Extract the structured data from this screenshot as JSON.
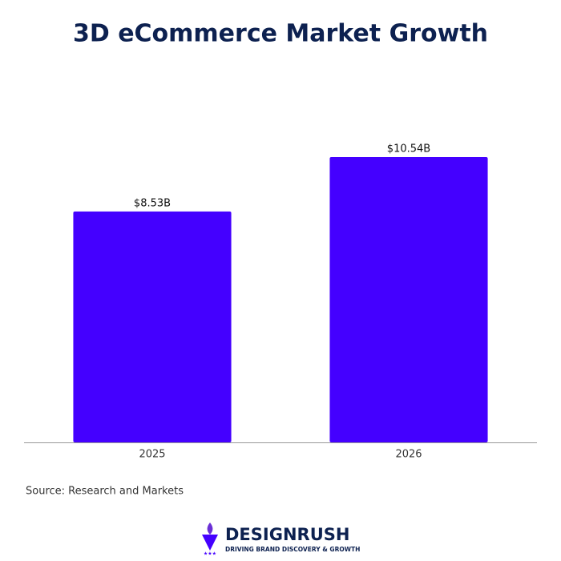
{
  "chart_data": {
    "type": "bar",
    "title": "3D eCommerce Market Growth",
    "categories": [
      "2025",
      "2026"
    ],
    "values": [
      8.53,
      10.54
    ],
    "value_labels": [
      "$8.53B",
      "$10.54B"
    ],
    "color": "#4400ff",
    "source": "Source: Research and Markets"
  },
  "branding": {
    "name": "DESIGNRUSH",
    "tagline": "DRIVING BRAND DISCOVERY & GROWTH"
  }
}
